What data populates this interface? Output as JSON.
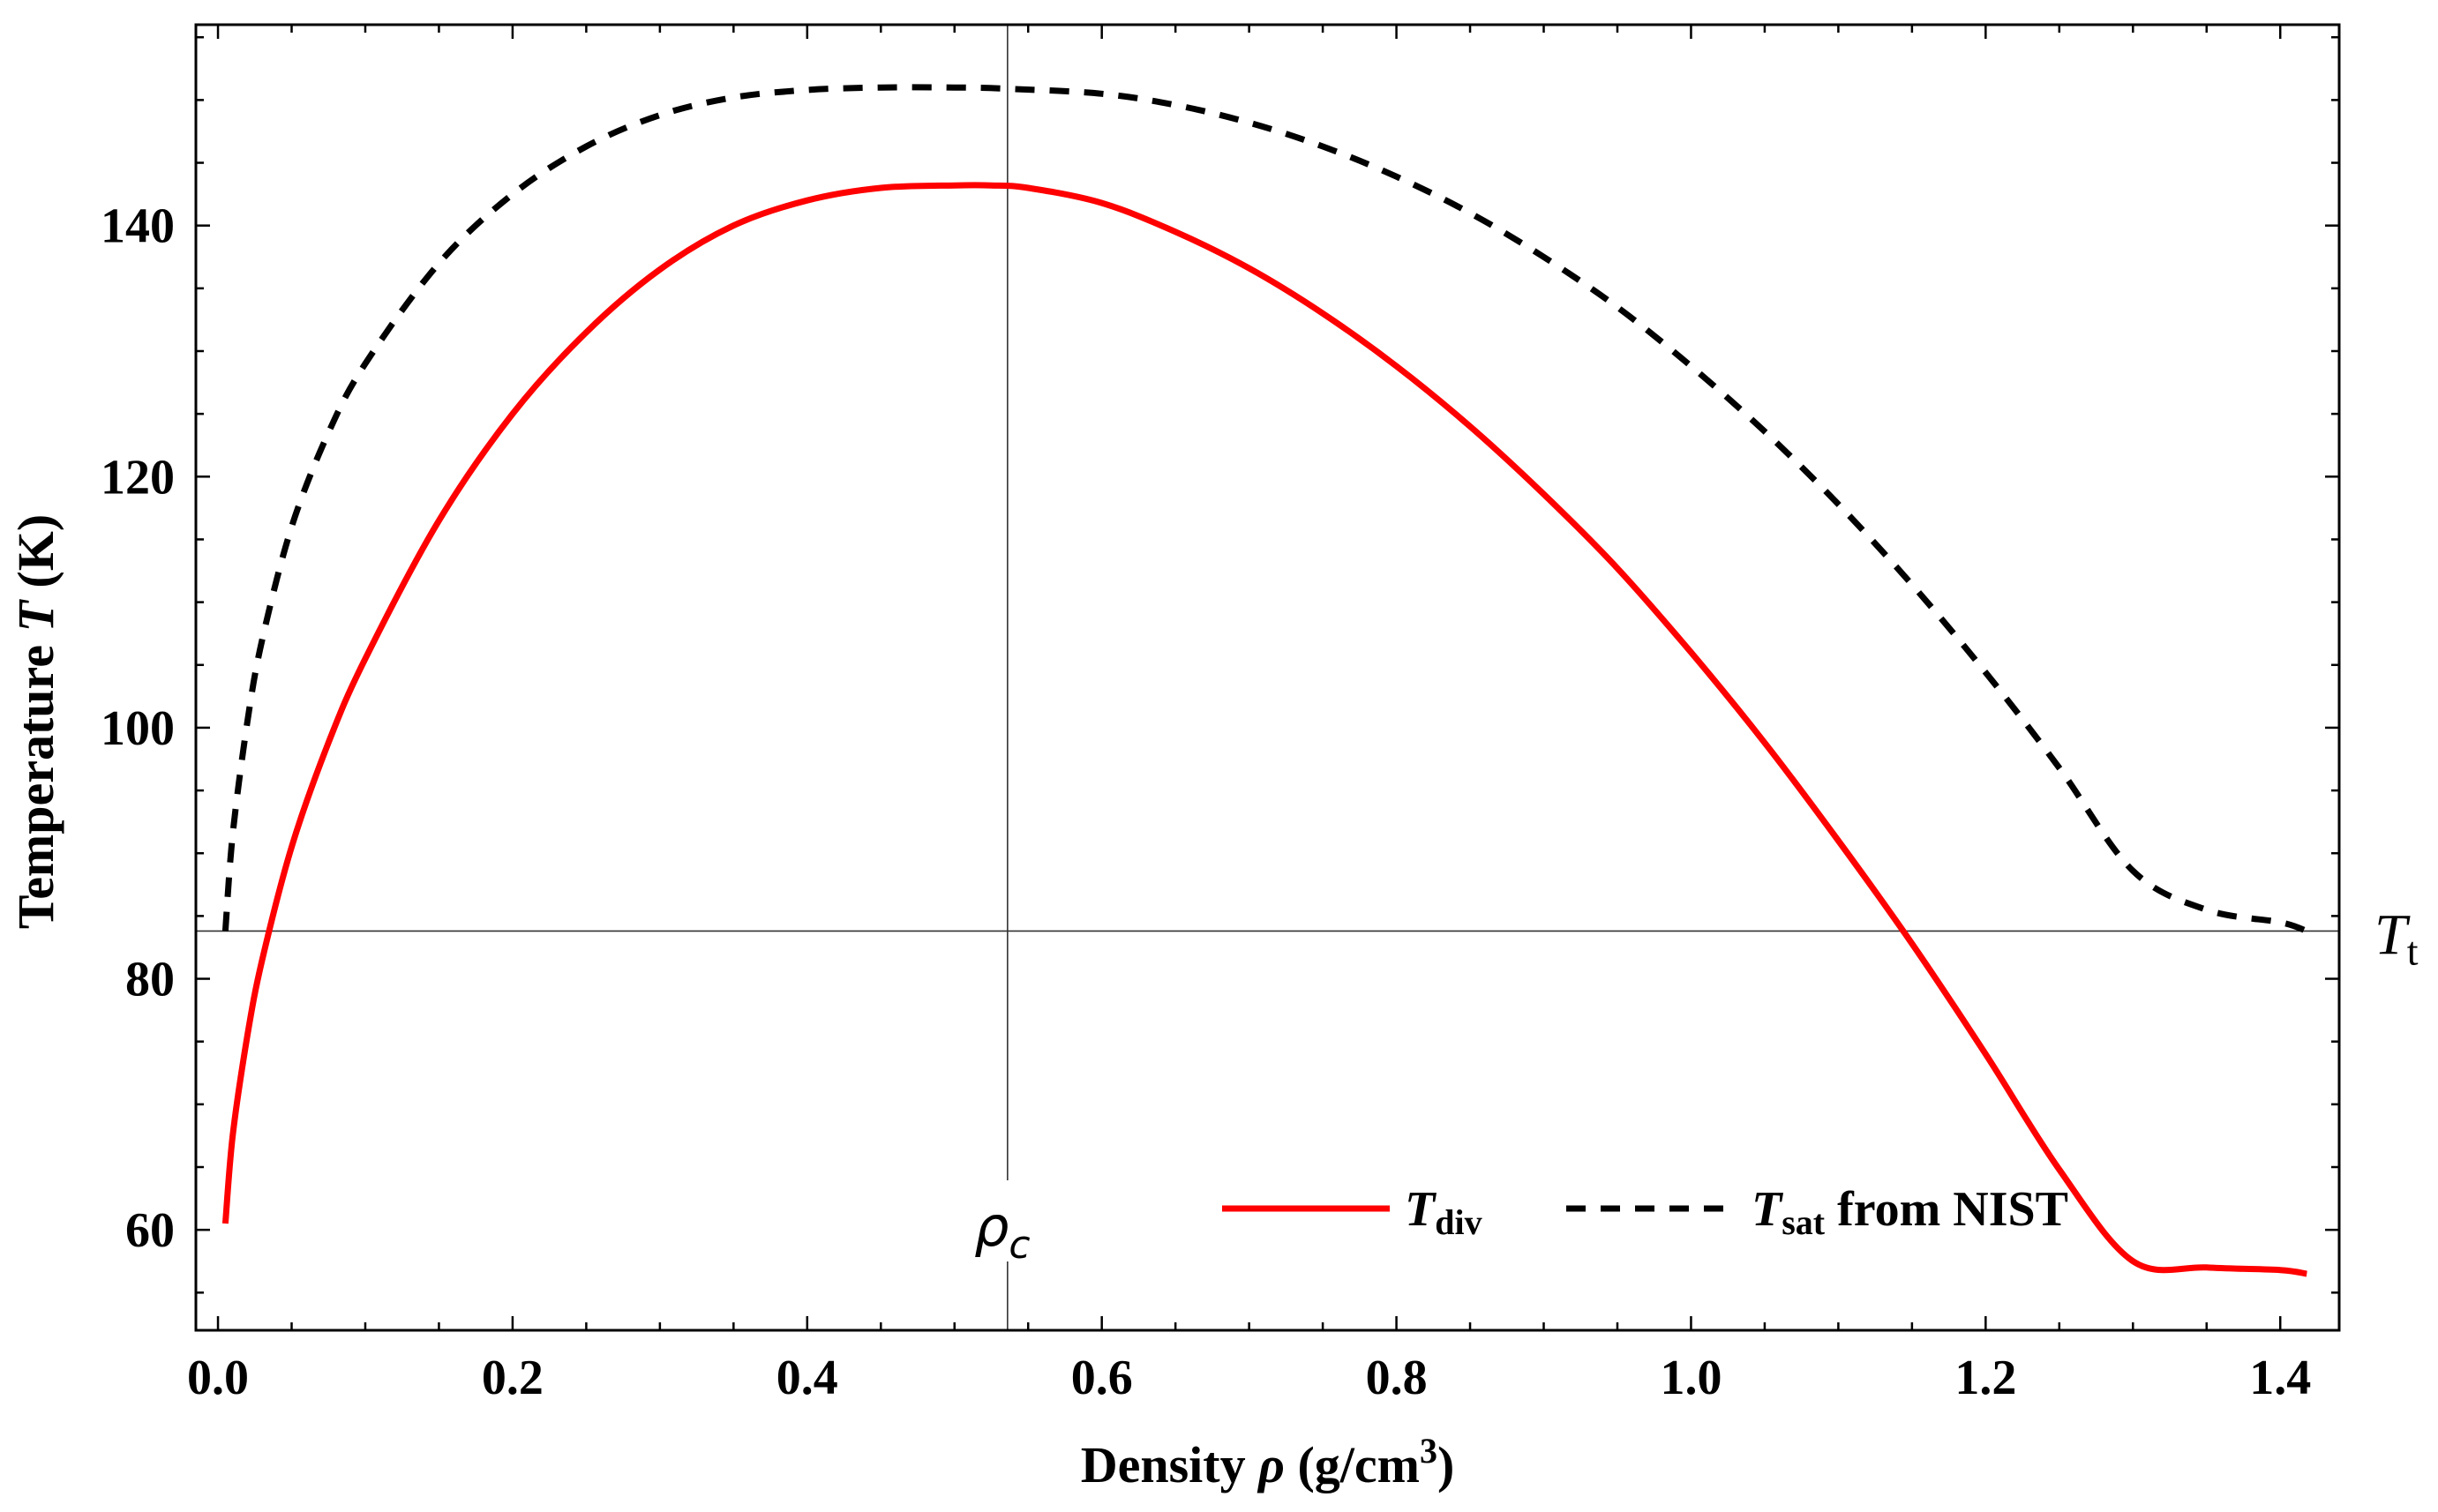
{
  "chart_data": {
    "type": "line",
    "xlabel": "Density",
    "xlabel_symbol": "ρ",
    "xlabel_unit": "(g/cm",
    "xlabel_unit_sup": "3",
    "xlabel_unit_close": ")",
    "ylabel": "Temperature",
    "ylabel_symbol": "T",
    "ylabel_unit": "(K)",
    "xlim": [
      -0.015,
      1.44
    ],
    "ylim": [
      52,
      156
    ],
    "x_ticks": [
      0.0,
      0.2,
      0.4,
      0.6,
      0.8,
      1.0,
      1.2,
      1.4
    ],
    "x_tick_labels": [
      "0.0",
      "0.2",
      "0.4",
      "0.6",
      "0.8",
      "1.0",
      "1.2",
      "1.4"
    ],
    "x_minor_step": 0.05,
    "y_ticks": [
      60,
      80,
      100,
      120,
      140
    ],
    "y_tick_labels": [
      "60",
      "80",
      "100",
      "120",
      "140"
    ],
    "y_minor_step": 5,
    "grid": false,
    "reference_lines": {
      "vertical": {
        "x": 0.536,
        "label": "ρ",
        "label_sub": "c"
      },
      "horizontal": {
        "y": 83.8,
        "label": "T",
        "label_sub": "t"
      }
    },
    "legend": {
      "position": "bottom-right",
      "entries": [
        {
          "name": "T",
          "sub": "div",
          "suffix": ""
        },
        {
          "name": "T",
          "sub": "sat",
          "suffix": " from NIST"
        }
      ]
    },
    "series": [
      {
        "name": "T_div",
        "style": "solid",
        "color": "#ff0000",
        "x": [
          0.005,
          0.01,
          0.02,
          0.03,
          0.05,
          0.075,
          0.1,
          0.15,
          0.2,
          0.25,
          0.3,
          0.35,
          0.4,
          0.45,
          0.5,
          0.525,
          0.55,
          0.6,
          0.65,
          0.7,
          0.75,
          0.8,
          0.85,
          0.9,
          0.95,
          1.0,
          1.05,
          1.1,
          1.15,
          1.2,
          1.25,
          1.3,
          1.35,
          1.4,
          1.418
        ],
        "values": [
          60.5,
          67.5,
          75.5,
          81.5,
          90.5,
          98.8,
          105.5,
          116.5,
          125.0,
          131.5,
          136.5,
          140.0,
          142.0,
          143.0,
          143.2,
          143.2,
          143.0,
          141.8,
          139.5,
          136.6,
          133.0,
          128.8,
          124.0,
          118.6,
          112.7,
          106.0,
          98.8,
          91.0,
          82.8,
          74.0,
          64.8,
          57.5,
          57.0,
          56.8,
          56.5
        ]
      },
      {
        "name": "T_sat from NIST",
        "style": "dashed",
        "color": "#000000",
        "x": [
          0.005,
          0.01,
          0.02,
          0.03,
          0.05,
          0.075,
          0.1,
          0.15,
          0.2,
          0.25,
          0.3,
          0.35,
          0.4,
          0.45,
          0.5,
          0.536,
          0.6,
          0.65,
          0.7,
          0.75,
          0.8,
          0.85,
          0.9,
          0.95,
          1.0,
          1.05,
          1.1,
          1.15,
          1.2,
          1.25,
          1.3,
          1.35,
          1.4,
          1.418
        ],
        "values": [
          83.8,
          91.5,
          100.5,
          107.0,
          116.0,
          123.5,
          129.0,
          137.0,
          142.5,
          146.3,
          148.8,
          150.2,
          150.8,
          151.0,
          151.0,
          150.9,
          150.5,
          149.6,
          148.2,
          146.3,
          143.9,
          141.0,
          137.5,
          133.5,
          128.8,
          123.6,
          117.8,
          111.4,
          104.4,
          96.8,
          88.6,
          85.5,
          84.5,
          83.8
        ]
      }
    ]
  }
}
